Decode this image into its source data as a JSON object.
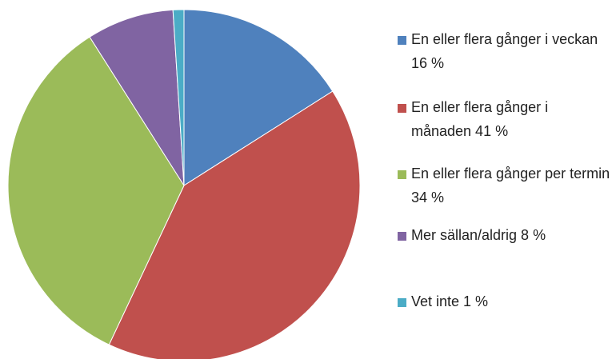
{
  "chart_data": {
    "type": "pie",
    "categories": [
      "En eller flera gånger i veckan 16 %",
      "En eller flera gånger i månaden 41 %",
      "En eller flera gånger per termin 34 %",
      "Mer sällan/aldrig 8 %",
      "Vet inte 1 %"
    ],
    "values": [
      16,
      41,
      34,
      8,
      1
    ],
    "colors": [
      "#4f81bd",
      "#c0504d",
      "#9bbb59",
      "#8064a2",
      "#4bacc6"
    ],
    "legend": "right"
  }
}
